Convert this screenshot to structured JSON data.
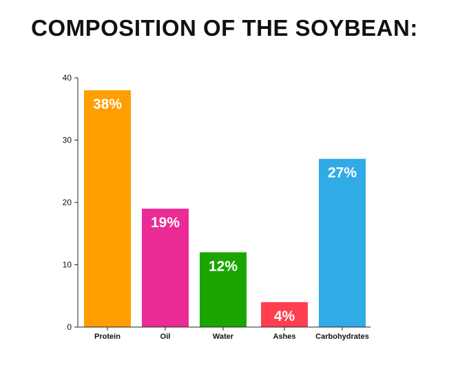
{
  "chart_data": {
    "type": "bar",
    "title": "COMPOSITION OF THE SOYBEAN:",
    "xlabel": "",
    "ylabel": "",
    "categories": [
      "Protein",
      "Oil",
      "Water",
      "Ashes",
      "Carbohydrates"
    ],
    "values": [
      38,
      19,
      12,
      4,
      27
    ],
    "data_labels": [
      "38%",
      "19%",
      "12%",
      "4%",
      "27%"
    ],
    "colors": [
      "#ff9e00",
      "#ea2b95",
      "#1ba500",
      "#ff3f50",
      "#30abe6"
    ],
    "ylim": [
      0,
      40
    ],
    "yticks": [
      0,
      10,
      20,
      30,
      40
    ],
    "grid": false,
    "legend": "none"
  }
}
